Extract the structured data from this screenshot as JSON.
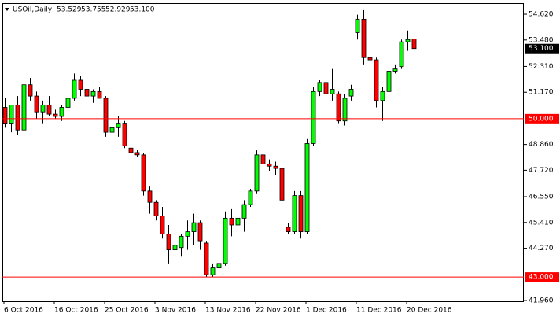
{
  "chart_data": {
    "type": "candlestick",
    "title": "USOil,Daily",
    "ohlc_labels": [
      "53.529",
      "53.755",
      "52.929",
      "53.100"
    ],
    "categories": [
      "6 Oct 2016",
      null,
      null,
      null,
      null,
      null,
      null,
      null,
      "16 Oct 2016",
      null,
      null,
      null,
      null,
      null,
      null,
      null,
      "25 Oct 2016",
      null,
      null,
      null,
      null,
      null,
      null,
      null,
      "3 Nov 2016",
      null,
      null,
      null,
      null,
      null,
      null,
      null,
      "13 Nov 2016",
      null,
      null,
      null,
      null,
      null,
      null,
      null,
      "22 Nov 2016",
      null,
      null,
      null,
      null,
      null,
      null,
      null,
      "1 Dec 2016",
      null,
      null,
      null,
      null,
      null,
      null,
      null,
      "11 Dec 2016",
      null,
      null,
      null,
      null,
      null,
      null,
      null,
      "20 Dec 2016",
      null
    ],
    "open": [
      50.5,
      49.8,
      50.6,
      49.5,
      51.5,
      51.0,
      50.3,
      50.6,
      50.2,
      50.1,
      50.5,
      50.9,
      51.7,
      51.3,
      51.0,
      51.2,
      50.9,
      49.4,
      49.6,
      49.8,
      48.7,
      48.5,
      48.4,
      46.8,
      46.3,
      45.7,
      44.9,
      44.2,
      44.3,
      44.8,
      45.0,
      45.4,
      44.5,
      43.1,
      43.4,
      43.6,
      45.6,
      45.3,
      45.6,
      46.2,
      46.8,
      48.4,
      48.0,
      47.9,
      47.8,
      45.2,
      45.0,
      46.6,
      45.0,
      48.9,
      51.2,
      51.6,
      51.1,
      51.1,
      49.9,
      51.0,
      53.8,
      54.4,
      52.7,
      52.6,
      50.8,
      51.2,
      52.1,
      52.3,
      53.4,
      53.529
    ],
    "high": [
      50.9,
      50.6,
      51.0,
      51.9,
      51.8,
      51.2,
      50.8,
      51.0,
      50.4,
      50.6,
      51.1,
      52.0,
      51.9,
      51.5,
      51.3,
      51.4,
      51.0,
      49.7,
      50.1,
      49.9,
      48.8,
      48.6,
      48.5,
      47.0,
      46.4,
      46.1,
      45.3,
      44.6,
      44.9,
      45.5,
      45.8,
      45.5,
      44.6,
      43.6,
      43.7,
      45.9,
      46.0,
      45.9,
      46.4,
      46.9,
      48.6,
      49.2,
      48.2,
      48.1,
      48.0,
      45.4,
      46.8,
      46.8,
      49.1,
      51.4,
      51.7,
      51.7,
      52.2,
      51.2,
      51.1,
      51.5,
      54.6,
      54.8,
      53.0,
      52.7,
      51.4,
      52.3,
      52.4,
      53.5,
      53.9,
      53.755
    ],
    "low": [
      49.6,
      49.4,
      49.3,
      49.4,
      50.8,
      50.0,
      49.8,
      50.1,
      50.0,
      49.9,
      50.1,
      50.8,
      51.0,
      50.9,
      50.7,
      50.9,
      49.2,
      49.1,
      49.2,
      48.7,
      48.3,
      48.3,
      46.6,
      45.8,
      45.5,
      44.7,
      43.6,
      44.1,
      43.9,
      44.2,
      44.4,
      44.2,
      43.0,
      43.0,
      42.2,
      43.5,
      44.8,
      44.7,
      45.0,
      46.1,
      46.7,
      47.9,
      47.7,
      47.5,
      46.3,
      44.9,
      44.9,
      44.7,
      44.9,
      48.8,
      51.0,
      50.8,
      50.8,
      49.8,
      49.7,
      50.8,
      53.5,
      52.4,
      52.3,
      50.5,
      49.9,
      50.9,
      52.0,
      52.2,
      53.0,
      52.929
    ],
    "close": [
      49.8,
      50.6,
      49.5,
      51.5,
      51.0,
      50.3,
      50.6,
      50.2,
      50.1,
      50.5,
      50.9,
      51.7,
      51.3,
      51.0,
      51.2,
      50.9,
      49.4,
      49.6,
      49.8,
      48.8,
      48.5,
      48.4,
      46.8,
      46.3,
      45.7,
      44.9,
      44.2,
      44.4,
      44.8,
      45.0,
      45.4,
      44.6,
      43.1,
      43.4,
      43.6,
      45.6,
      45.3,
      45.6,
      46.2,
      46.8,
      48.4,
      48.0,
      47.9,
      47.8,
      46.4,
      45.0,
      46.6,
      45.0,
      48.9,
      51.2,
      51.6,
      51.1,
      51.3,
      49.9,
      50.9,
      51.3,
      54.4,
      52.7,
      52.6,
      50.8,
      51.2,
      52.1,
      52.2,
      53.4,
      53.5,
      53.1
    ],
    "up_color": "#00ff00",
    "down_color": "#ff0000",
    "wick_color": "#000000",
    "ylim": [
      41.925,
      55.108
    ],
    "yticks": [
      {
        "value": 54.62,
        "label": "54.620"
      },
      {
        "value": 53.48,
        "label": "53.480"
      },
      {
        "value": 52.31,
        "label": "52.310"
      },
      {
        "value": 51.17,
        "label": "51.170"
      },
      {
        "value": 48.86,
        "label": "48.860"
      },
      {
        "value": 47.72,
        "label": "47.720"
      },
      {
        "value": 46.55,
        "label": "46.550"
      },
      {
        "value": 45.41,
        "label": "45.410"
      },
      {
        "value": 44.27,
        "label": "44.270"
      },
      {
        "value": 41.96,
        "label": "41.960"
      }
    ],
    "hlines": [
      {
        "value": 50,
        "label": "50.000",
        "color": "#ff0000"
      },
      {
        "value": 43,
        "label": "43.000",
        "color": "#ff0000"
      }
    ],
    "last_price": {
      "value": 53.1,
      "label": "53.100",
      "color": "#000000"
    },
    "grid": false
  }
}
